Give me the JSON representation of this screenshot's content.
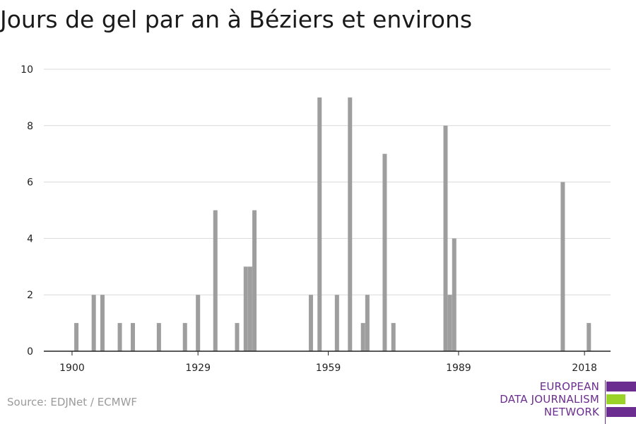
{
  "title": "Jours de gel par an à Béziers et environs",
  "source": "Source: EDJNet / ECMWF",
  "logo": {
    "lines": [
      "EUROPEAN",
      "DATA JOURNALISM",
      "NETWORK"
    ],
    "colors": {
      "purple": "#6b2d8f",
      "green": "#9bd22a"
    }
  },
  "colors": {
    "bar": "#9e9e9e",
    "grid": "#d9d9d9",
    "axis": "#222222",
    "text": "#222222"
  },
  "chart_data": {
    "type": "bar",
    "title": "Jours de gel par an à Béziers et environs",
    "xlabel": "",
    "ylabel": "",
    "xlim": [
      1893.5,
      2024
    ],
    "ylim": [
      0,
      10
    ],
    "x_ticks": [
      1900,
      1929,
      1959,
      1989,
      2018
    ],
    "y_ticks": [
      0,
      2,
      4,
      6,
      8,
      10
    ],
    "grid": true,
    "x": [
      1901,
      1905,
      1907,
      1911,
      1914,
      1920,
      1926,
      1929,
      1933,
      1938,
      1940,
      1941,
      1942,
      1955,
      1957,
      1961,
      1964,
      1967,
      1968,
      1972,
      1974,
      1986,
      1987,
      1988,
      2013,
      2019
    ],
    "values": [
      1,
      2,
      2,
      1,
      1,
      1,
      1,
      2,
      5,
      1,
      3,
      3,
      5,
      2,
      9,
      2,
      9,
      1,
      2,
      7,
      1,
      8,
      2,
      4,
      6,
      1
    ]
  }
}
